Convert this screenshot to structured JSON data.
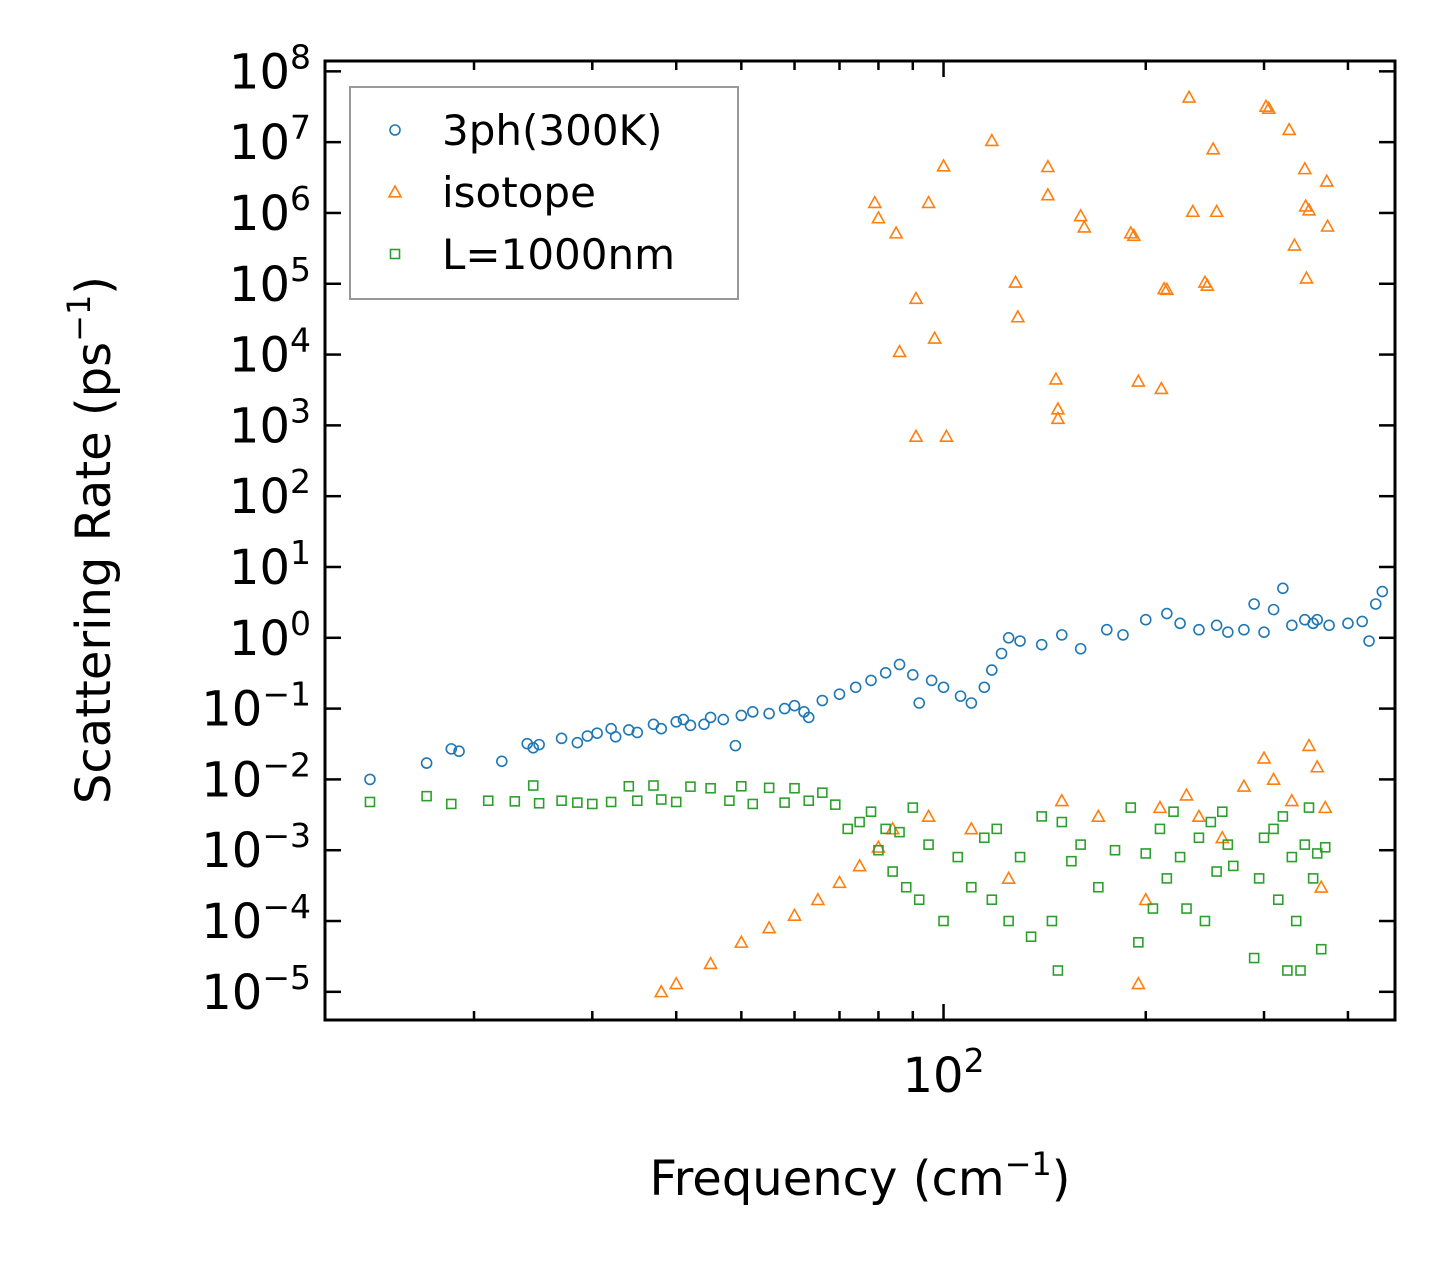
{
  "chart_data": {
    "type": "scatter",
    "title": "",
    "xlabel": "Frequency (cm",
    "xlabel_sup": "−1",
    "xlabel_end": ")",
    "ylabel": "Scattering Rate (ps",
    "ylabel_sup": "−1",
    "ylabel_end": ")",
    "xscale": "log",
    "yscale": "log",
    "xlim": [
      12,
      470
    ],
    "ylim": [
      4e-06,
      140000000.0
    ],
    "x_tick_labels": [
      {
        "value": 100,
        "base": "10",
        "exp": "2"
      }
    ],
    "y_tick_labels": [
      {
        "value": 100000000.0,
        "base": "10",
        "exp": "8"
      },
      {
        "value": 10000000.0,
        "base": "10",
        "exp": "7"
      },
      {
        "value": 1000000.0,
        "base": "10",
        "exp": "6"
      },
      {
        "value": 100000.0,
        "base": "10",
        "exp": "5"
      },
      {
        "value": 10000.0,
        "base": "10",
        "exp": "4"
      },
      {
        "value": 1000.0,
        "base": "10",
        "exp": "3"
      },
      {
        "value": 100.0,
        "base": "10",
        "exp": "2"
      },
      {
        "value": 10.0,
        "base": "10",
        "exp": "1"
      },
      {
        "value": 1,
        "base": "10",
        "exp": "0"
      },
      {
        "value": 0.1,
        "base": "10",
        "exp": "−1"
      },
      {
        "value": 0.01,
        "base": "10",
        "exp": "−2"
      },
      {
        "value": 0.001,
        "base": "10",
        "exp": "−3"
      },
      {
        "value": 0.0001,
        "base": "10",
        "exp": "−4"
      },
      {
        "value": 1e-05,
        "base": "10",
        "exp": "−5"
      }
    ],
    "legend_position": "top-left",
    "series": [
      {
        "name": "3ph(300K)",
        "marker": "circle",
        "color": "#1f77b4",
        "points": [
          [
            14,
            0.01
          ],
          [
            17,
            0.017
          ],
          [
            18.5,
            0.027
          ],
          [
            19,
            0.025
          ],
          [
            22,
            0.018
          ],
          [
            24,
            0.032
          ],
          [
            24.5,
            0.028
          ],
          [
            25,
            0.031
          ],
          [
            27,
            0.038
          ],
          [
            28.5,
            0.033
          ],
          [
            29.5,
            0.041
          ],
          [
            30.5,
            0.045
          ],
          [
            32,
            0.052
          ],
          [
            32.5,
            0.04
          ],
          [
            34,
            0.05
          ],
          [
            35,
            0.046
          ],
          [
            37,
            0.06
          ],
          [
            38,
            0.052
          ],
          [
            40,
            0.065
          ],
          [
            41,
            0.07
          ],
          [
            42,
            0.058
          ],
          [
            44,
            0.06
          ],
          [
            45,
            0.075
          ],
          [
            47,
            0.07
          ],
          [
            49,
            0.03
          ],
          [
            50,
            0.08
          ],
          [
            52,
            0.09
          ],
          [
            55,
            0.085
          ],
          [
            58,
            0.1
          ],
          [
            60,
            0.11
          ],
          [
            62,
            0.09
          ],
          [
            63,
            0.075
          ],
          [
            66,
            0.13
          ],
          [
            70,
            0.16
          ],
          [
            74,
            0.2
          ],
          [
            78,
            0.25
          ],
          [
            82,
            0.32
          ],
          [
            86,
            0.42
          ],
          [
            90,
            0.3
          ],
          [
            92,
            0.12
          ],
          [
            96,
            0.25
          ],
          [
            100,
            0.2
          ],
          [
            106,
            0.15
          ],
          [
            110,
            0.12
          ],
          [
            115,
            0.2
          ],
          [
            118,
            0.35
          ],
          [
            122,
            0.6
          ],
          [
            125,
            1.0
          ],
          [
            130,
            0.9
          ],
          [
            140,
            0.8
          ],
          [
            150,
            1.1
          ],
          [
            160,
            0.7
          ],
          [
            175,
            1.3
          ],
          [
            185,
            1.1
          ],
          [
            200,
            1.8
          ],
          [
            215,
            2.2
          ],
          [
            225,
            1.6
          ],
          [
            240,
            1.3
          ],
          [
            255,
            1.5
          ],
          [
            265,
            1.2
          ],
          [
            280,
            1.3
          ],
          [
            290,
            3.0
          ],
          [
            300,
            1.2
          ],
          [
            310,
            2.5
          ],
          [
            320,
            5.0
          ],
          [
            330,
            1.5
          ],
          [
            345,
            1.8
          ],
          [
            355,
            1.6
          ],
          [
            360,
            1.8
          ],
          [
            375,
            1.5
          ],
          [
            400,
            1.6
          ],
          [
            420,
            1.7
          ],
          [
            430,
            0.9
          ],
          [
            440,
            3.0
          ],
          [
            450,
            4.5
          ]
        ]
      },
      {
        "name": "isotope",
        "marker": "triangle",
        "color": "#ff7f0e",
        "points": [
          [
            79,
            1400000.0
          ],
          [
            80,
            850000.0
          ],
          [
            85,
            520000.0
          ],
          [
            86,
            11000.0
          ],
          [
            91,
            700.0
          ],
          [
            91,
            62000.0
          ],
          [
            95,
            1400000.0
          ],
          [
            97,
            17000.0
          ],
          [
            100,
            4600000.0
          ],
          [
            101,
            700.0
          ],
          [
            118,
            10500000.0
          ],
          [
            128,
            105000.0
          ],
          [
            129,
            34000.0
          ],
          [
            143,
            4500000.0
          ],
          [
            143,
            1800000.0
          ],
          [
            147,
            4500.0
          ],
          [
            148,
            1700.0
          ],
          [
            148,
            1250.0
          ],
          [
            160,
            910000.0
          ],
          [
            162,
            630000.0
          ],
          [
            190,
            520000.0
          ],
          [
            192,
            480000.0
          ],
          [
            195,
            4200.0
          ],
          [
            211,
            3300.0
          ],
          [
            213,
            85000.0
          ],
          [
            215,
            83000.0
          ],
          [
            232,
            43000000.0
          ],
          [
            235,
            1050000.0
          ],
          [
            245,
            105000.0
          ],
          [
            247,
            95000.0
          ],
          [
            252,
            8000000.0
          ],
          [
            255,
            1050000.0
          ],
          [
            302,
            32000000.0
          ],
          [
            305,
            30000000.0
          ],
          [
            327,
            15000000.0
          ],
          [
            333,
            350000.0
          ],
          [
            345,
            4200000.0
          ],
          [
            346,
            1250000.0
          ],
          [
            347,
            120000.0
          ],
          [
            350,
            1100000.0
          ],
          [
            372,
            2800000.0
          ],
          [
            373,
            650000.0
          ],
          [
            38,
            1e-05
          ],
          [
            40,
            1.3e-05
          ],
          [
            45,
            2.5e-05
          ],
          [
            50,
            5e-05
          ],
          [
            55,
            8e-05
          ],
          [
            60,
            0.00012
          ],
          [
            65,
            0.0002
          ],
          [
            70,
            0.00035
          ],
          [
            75,
            0.0006
          ],
          [
            80,
            0.0011
          ],
          [
            84,
            0.002
          ],
          [
            95,
            0.003
          ],
          [
            110,
            0.002
          ],
          [
            125,
            0.0004
          ],
          [
            150,
            0.005
          ],
          [
            170,
            0.003
          ],
          [
            195,
            1.3e-05
          ],
          [
            200,
            0.0002
          ],
          [
            210,
            0.004
          ],
          [
            230,
            0.006
          ],
          [
            240,
            0.003
          ],
          [
            260,
            0.0015
          ],
          [
            280,
            0.008
          ],
          [
            300,
            0.02
          ],
          [
            310,
            0.01
          ],
          [
            330,
            0.005
          ],
          [
            350,
            0.03
          ],
          [
            360,
            0.015
          ],
          [
            365,
            0.0003
          ],
          [
            370,
            0.004
          ]
        ]
      },
      {
        "name": "L=1000nm",
        "marker": "square",
        "color": "#2ca02c",
        "points": [
          [
            14,
            0.0048
          ],
          [
            17,
            0.0058
          ],
          [
            18.5,
            0.0045
          ],
          [
            21,
            0.005
          ],
          [
            23,
            0.0049
          ],
          [
            24.5,
            0.0082
          ],
          [
            25,
            0.0046
          ],
          [
            27,
            0.005
          ],
          [
            28.5,
            0.0047
          ],
          [
            30,
            0.0045
          ],
          [
            32,
            0.0048
          ],
          [
            34,
            0.008
          ],
          [
            35,
            0.005
          ],
          [
            37,
            0.0082
          ],
          [
            38,
            0.0052
          ],
          [
            40,
            0.0048
          ],
          [
            42,
            0.0079
          ],
          [
            45,
            0.0075
          ],
          [
            48,
            0.005
          ],
          [
            50,
            0.008
          ],
          [
            52,
            0.0045
          ],
          [
            55,
            0.0076
          ],
          [
            58,
            0.0047
          ],
          [
            60,
            0.0075
          ],
          [
            63,
            0.005
          ],
          [
            66,
            0.0065
          ],
          [
            69,
            0.0044
          ],
          [
            72,
            0.002
          ],
          [
            75,
            0.0025
          ],
          [
            78,
            0.0035
          ],
          [
            80,
            0.001
          ],
          [
            82,
            0.002
          ],
          [
            84,
            0.0005
          ],
          [
            86,
            0.0018
          ],
          [
            88,
            0.0003
          ],
          [
            90,
            0.004
          ],
          [
            92,
            0.0002
          ],
          [
            95,
            0.0012
          ],
          [
            100,
            0.0001
          ],
          [
            105,
            0.0008
          ],
          [
            110,
            0.0003
          ],
          [
            115,
            0.0015
          ],
          [
            118,
            0.0002
          ],
          [
            120,
            0.002
          ],
          [
            125,
            0.0001
          ],
          [
            130,
            0.0008
          ],
          [
            135,
            6e-05
          ],
          [
            140,
            0.003
          ],
          [
            145,
            0.0001
          ],
          [
            148,
            2e-05
          ],
          [
            150,
            0.0025
          ],
          [
            155,
            0.0007
          ],
          [
            160,
            0.0012
          ],
          [
            170,
            0.0003
          ],
          [
            180,
            0.001
          ],
          [
            190,
            0.004
          ],
          [
            195,
            5e-05
          ],
          [
            200,
            0.0009
          ],
          [
            205,
            0.00015
          ],
          [
            210,
            0.002
          ],
          [
            215,
            0.0004
          ],
          [
            220,
            0.0035
          ],
          [
            225,
            0.0008
          ],
          [
            230,
            0.00015
          ],
          [
            240,
            0.0015
          ],
          [
            245,
            0.0001
          ],
          [
            250,
            0.0025
          ],
          [
            255,
            0.0005
          ],
          [
            260,
            0.0035
          ],
          [
            265,
            0.0012
          ],
          [
            270,
            0.0006
          ],
          [
            290,
            3e-05
          ],
          [
            295,
            0.0004
          ],
          [
            300,
            0.0015
          ],
          [
            310,
            0.002
          ],
          [
            315,
            0.0002
          ],
          [
            320,
            0.003
          ],
          [
            325,
            2e-05
          ],
          [
            330,
            0.0008
          ],
          [
            335,
            0.0001
          ],
          [
            340,
            2e-05
          ],
          [
            345,
            0.0012
          ],
          [
            350,
            0.004
          ],
          [
            355,
            0.0004
          ],
          [
            360,
            0.0009
          ],
          [
            365,
            4e-05
          ],
          [
            370,
            0.0011
          ]
        ]
      }
    ]
  }
}
